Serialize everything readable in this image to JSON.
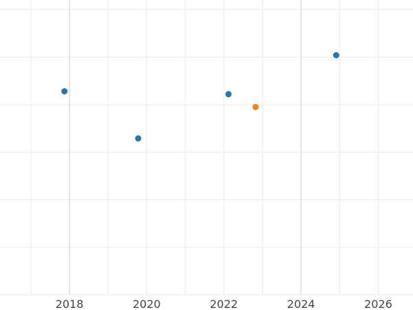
{
  "chart_data": {
    "type": "scatter",
    "title": "",
    "xlabel": "",
    "ylabel": "",
    "xlim": [
      2016.2,
      2026.9
    ],
    "ylim": [
      0,
      6.2
    ],
    "xticks": [
      2018,
      2020,
      2022,
      2024,
      2026
    ],
    "xtick_labels": [
      "2018",
      "2020",
      "2022",
      "2024",
      "2026"
    ],
    "highlighted_xgrid": [
      2018,
      2024
    ],
    "yticks": [
      0,
      1,
      2,
      3,
      4,
      5,
      6
    ],
    "grid": true,
    "series": [
      {
        "color": "#1f77b4",
        "points": [
          {
            "x": 2017.87,
            "y": 4.28
          },
          {
            "x": 2019.78,
            "y": 3.29
          },
          {
            "x": 2022.12,
            "y": 4.22
          },
          {
            "x": 2024.91,
            "y": 5.04
          }
        ]
      },
      {
        "color": "#ff7f0e",
        "points": [
          {
            "x": 2022.82,
            "y": 3.95
          }
        ]
      }
    ]
  }
}
